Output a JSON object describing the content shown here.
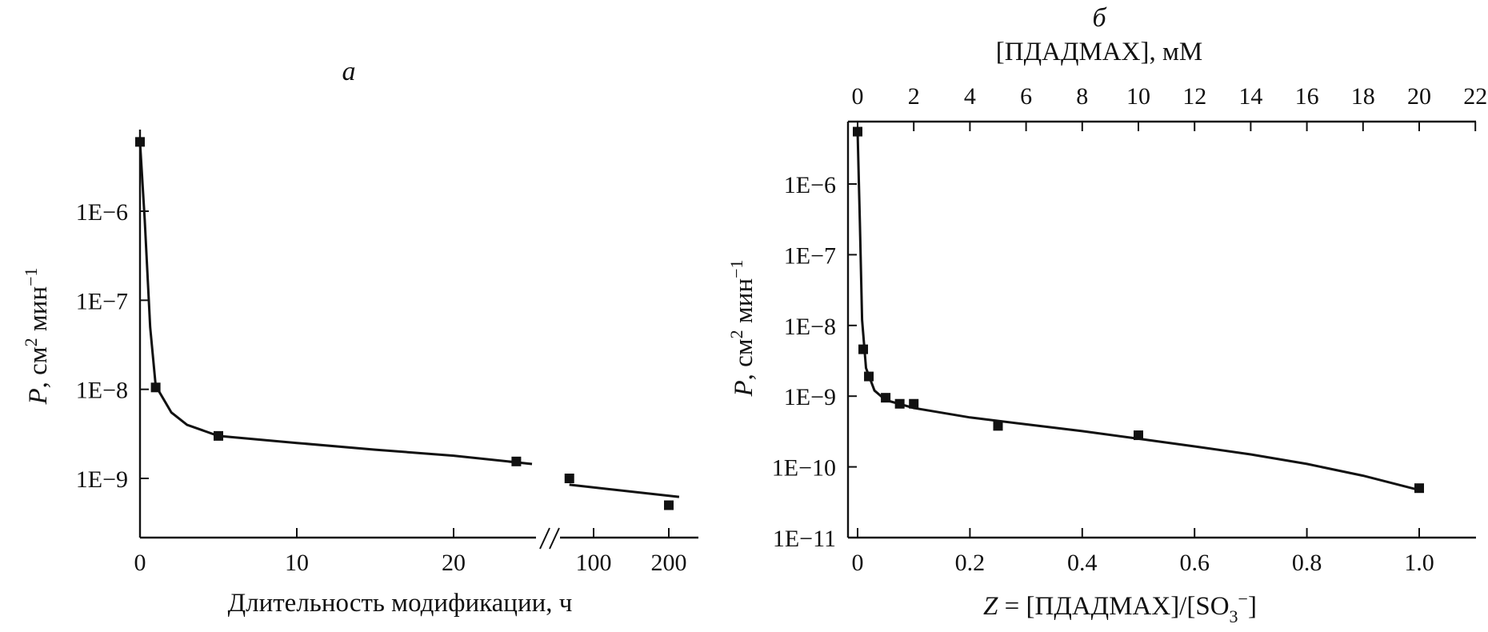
{
  "chart_data": [
    {
      "panel_label": "а",
      "type": "scatter",
      "xlabel": "Длительность модификации, ч",
      "ylabel": "P, см² мин⁻¹",
      "y_scale": "log",
      "x_axis_break": true,
      "x_ticks": [
        "0",
        "10",
        "20",
        "100",
        "200"
      ],
      "y_ticks": [
        "1E−6",
        "1E−7",
        "1E−8",
        "1E−9"
      ],
      "points": [
        {
          "x": 0,
          "y": 6e-06
        },
        {
          "x": 1,
          "y": 1.05e-08
        },
        {
          "x": 5,
          "y": 3e-09
        },
        {
          "x": 24,
          "y": 1.55e-09
        },
        {
          "x": 80,
          "y": 1e-09
        },
        {
          "x": 200,
          "y": 5e-10
        }
      ],
      "fit_curve": [
        {
          "x": 0,
          "y": 6e-06
        },
        {
          "x": 0.3,
          "y": 8e-07
        },
        {
          "x": 0.65,
          "y": 5e-08
        },
        {
          "x": 1,
          "y": 1.1e-08
        },
        {
          "x": 2,
          "y": 5.5e-09
        },
        {
          "x": 3,
          "y": 4e-09
        },
        {
          "x": 5,
          "y": 3e-09
        },
        {
          "x": 10,
          "y": 2.5e-09
        },
        {
          "x": 15,
          "y": 2.1e-09
        },
        {
          "x": 20,
          "y": 1.8e-09
        },
        {
          "x": 25,
          "y": 1.45e-09
        }
      ],
      "fit_curve_after_break": [
        {
          "x": 80,
          "y": 8.5e-10
        },
        {
          "x": 220,
          "y": 6.2e-10
        }
      ]
    },
    {
      "panel_label": "б",
      "type": "scatter",
      "xlabel": "Z = [ПДАДМАХ]/[SO₃⁻]",
      "xlabel_top": "[ПДАДМАХ], мМ",
      "ylabel": "P, см² мин⁻¹",
      "y_scale": "log",
      "x_ticks": [
        "0",
        "0.2",
        "0.4",
        "0.6",
        "0.8",
        "1.0"
      ],
      "x_ticks_top": [
        "0",
        "2",
        "4",
        "6",
        "8",
        "10",
        "12",
        "14",
        "16",
        "18",
        "20",
        "22"
      ],
      "y_ticks": [
        "1E−6",
        "1E−7",
        "1E−8",
        "1E−9",
        "1E−10",
        "1E−11"
      ],
      "xlim": [
        -0.02,
        1.1
      ],
      "xlim_top": [
        -0.4,
        22
      ],
      "points": [
        {
          "x": 0,
          "y": 5.5e-06
        },
        {
          "x": 0.01,
          "y": 4.6e-09
        },
        {
          "x": 0.02,
          "y": 1.9e-09
        },
        {
          "x": 0.05,
          "y": 9.5e-10
        },
        {
          "x": 0.075,
          "y": 7.8e-10
        },
        {
          "x": 0.1,
          "y": 7.8e-10
        },
        {
          "x": 0.25,
          "y": 3.8e-10
        },
        {
          "x": 0.5,
          "y": 2.8e-10
        },
        {
          "x": 1.0,
          "y": 5e-11
        }
      ],
      "fit_curve": [
        {
          "x": 0,
          "y": 5.5e-06
        },
        {
          "x": 0.004,
          "y": 3e-07
        },
        {
          "x": 0.008,
          "y": 1.2e-08
        },
        {
          "x": 0.015,
          "y": 2.5e-09
        },
        {
          "x": 0.03,
          "y": 1.2e-09
        },
        {
          "x": 0.05,
          "y": 8.8e-10
        },
        {
          "x": 0.1,
          "y": 6.8e-10
        },
        {
          "x": 0.2,
          "y": 5e-10
        },
        {
          "x": 0.3,
          "y": 4e-10
        },
        {
          "x": 0.4,
          "y": 3.2e-10
        },
        {
          "x": 0.5,
          "y": 2.5e-10
        },
        {
          "x": 0.6,
          "y": 1.95e-10
        },
        {
          "x": 0.7,
          "y": 1.5e-10
        },
        {
          "x": 0.8,
          "y": 1.1e-10
        },
        {
          "x": 0.9,
          "y": 7.5e-11
        },
        {
          "x": 1.0,
          "y": 4.7e-11
        }
      ]
    }
  ]
}
